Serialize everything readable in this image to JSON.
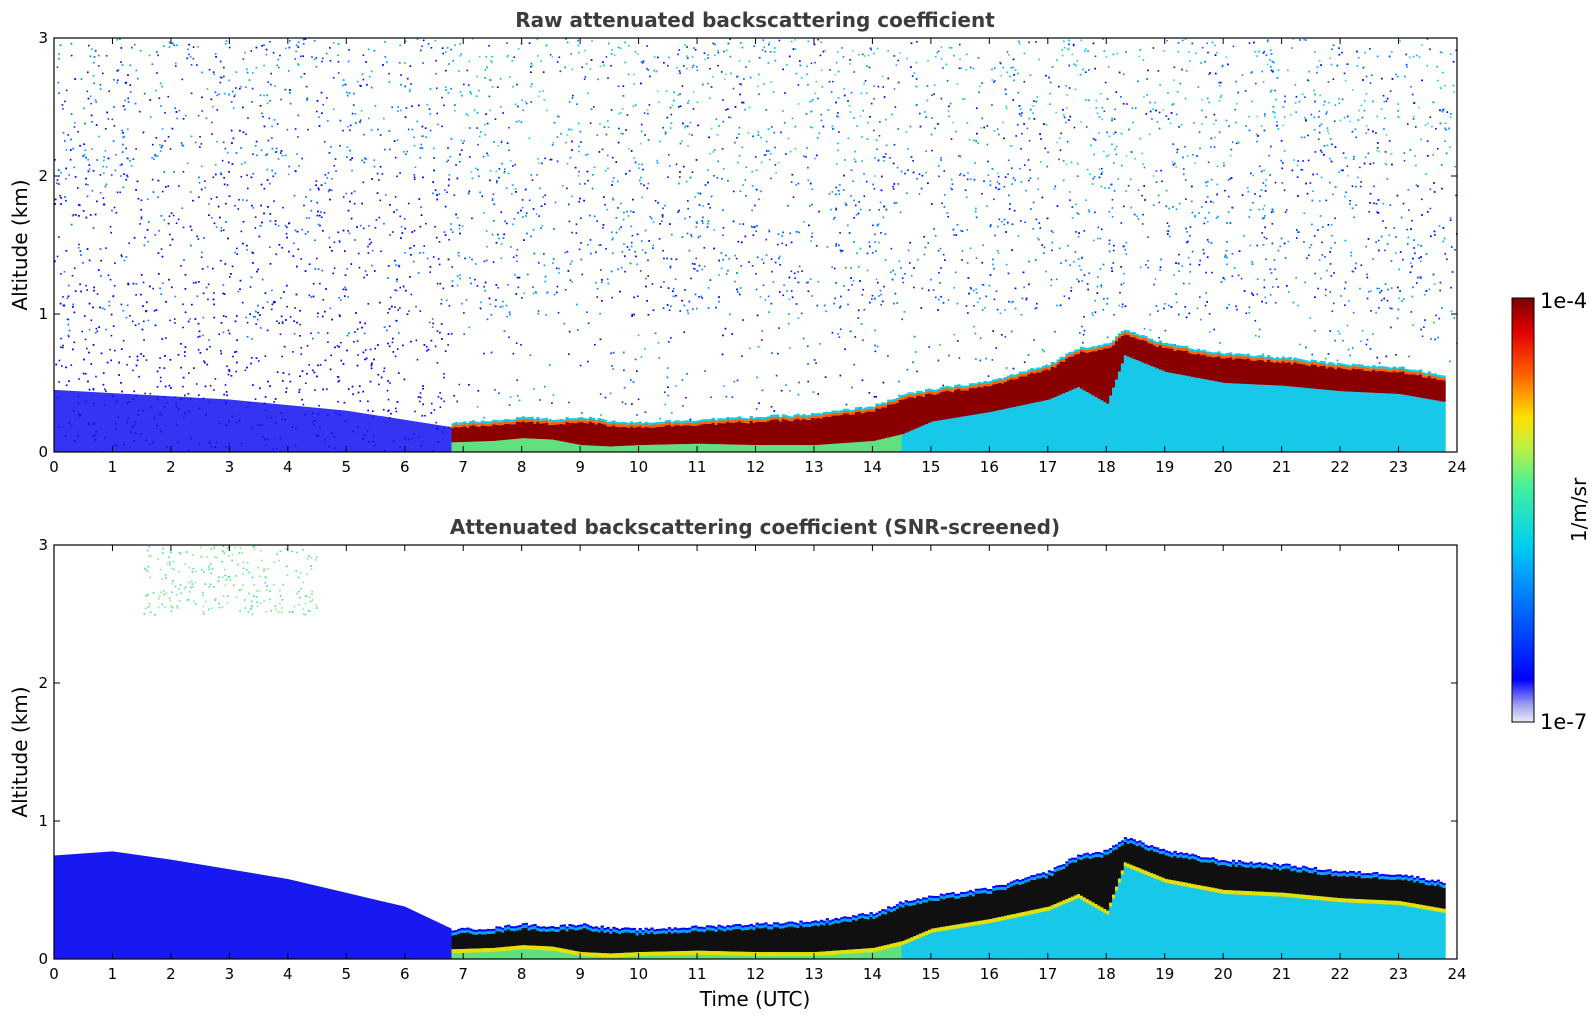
{
  "chart_data": [
    {
      "type": "heatmap",
      "title": "Raw attenuated backscattering coefficient",
      "xlabel": "",
      "ylabel": "Altitude (km)",
      "xlim": [
        0,
        24
      ],
      "ylim": [
        0,
        3
      ],
      "xticks": [
        "0",
        "1",
        "2",
        "3",
        "4",
        "5",
        "6",
        "7",
        "8",
        "9",
        "10",
        "11",
        "12",
        "13",
        "14",
        "15",
        "16",
        "17",
        "18",
        "19",
        "20",
        "21",
        "22",
        "23",
        "24"
      ],
      "yticks": [
        "0",
        "1",
        "2",
        "3"
      ],
      "grid": false,
      "layer_top_km": {
        "x": [
          6.8,
          7.5,
          8.0,
          8.5,
          9.0,
          9.5,
          10.0,
          11.0,
          12.0,
          13.0,
          14.0,
          14.5,
          15.0,
          16.0,
          17.0,
          17.5,
          18.0,
          18.3,
          19.0,
          20.0,
          21.0,
          22.0,
          23.0,
          23.8
        ],
        "y": [
          0.18,
          0.19,
          0.22,
          0.2,
          0.22,
          0.19,
          0.18,
          0.2,
          0.22,
          0.24,
          0.3,
          0.38,
          0.42,
          0.48,
          0.6,
          0.72,
          0.75,
          0.85,
          0.75,
          0.68,
          0.65,
          0.6,
          0.58,
          0.52
        ]
      },
      "layer_base_km": {
        "x": [
          6.8,
          7.5,
          8.0,
          8.5,
          9.0,
          9.5,
          10.0,
          11.0,
          12.0,
          13.0,
          14.0,
          14.5,
          15.0,
          16.0,
          17.0,
          17.5,
          18.0,
          18.3,
          19.0,
          20.0,
          21.0,
          22.0,
          23.0,
          23.8
        ],
        "y": [
          0.07,
          0.08,
          0.1,
          0.09,
          0.05,
          0.04,
          0.05,
          0.06,
          0.05,
          0.05,
          0.08,
          0.13,
          0.22,
          0.29,
          0.38,
          0.47,
          0.35,
          0.7,
          0.58,
          0.5,
          0.48,
          0.44,
          0.42,
          0.36
        ]
      },
      "noise_boundary_time_utc": 6.8
    },
    {
      "type": "heatmap",
      "title": "Attenuated backscattering coefficient (SNR-screened)",
      "xlabel": "Time (UTC)",
      "ylabel": "Altitude (km)",
      "xlim": [
        0,
        24
      ],
      "ylim": [
        0,
        3
      ],
      "xticks": [
        "0",
        "1",
        "2",
        "3",
        "4",
        "5",
        "6",
        "7",
        "8",
        "9",
        "10",
        "11",
        "12",
        "13",
        "14",
        "15",
        "16",
        "17",
        "18",
        "19",
        "20",
        "21",
        "22",
        "23",
        "24"
      ],
      "yticks": [
        "0",
        "1",
        "2",
        "3"
      ],
      "grid": false,
      "residual_layer_top_km": {
        "x": [
          0,
          1,
          2,
          3,
          4,
          5,
          6,
          6.8
        ],
        "y": [
          0.75,
          0.78,
          0.72,
          0.65,
          0.58,
          0.48,
          0.38,
          0.22
        ]
      }
    }
  ],
  "colorbar": {
    "label": "1/m/sr",
    "max_label": "1e-4",
    "min_label": "1e-7",
    "scale": "log",
    "colors": [
      "#eaeaf8",
      "#0000ff",
      "#0080ff",
      "#00d8e8",
      "#7cff7c",
      "#f0f000",
      "#ff8000",
      "#e00000",
      "#7f0000"
    ]
  }
}
